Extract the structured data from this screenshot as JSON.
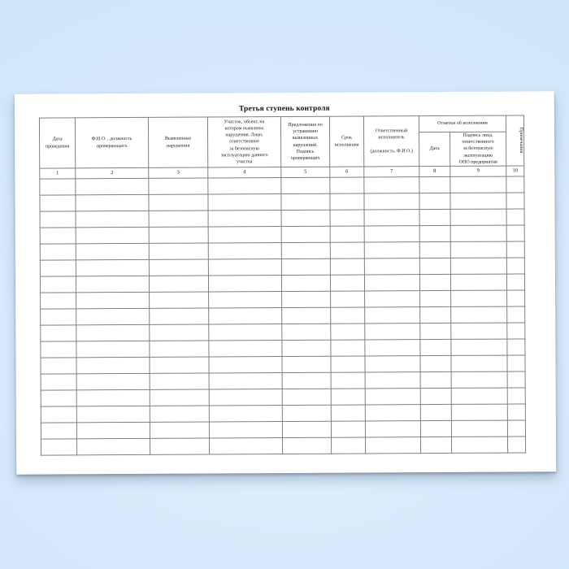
{
  "background": {
    "base_color": "#d7eafb"
  },
  "page": {
    "color": "#ffffff",
    "border_color": "#7f7f7f"
  },
  "doc": {
    "title": "Третья ступень контроля",
    "table": {
      "headers": {
        "col1": "Дата\nпроведения",
        "col2": "Ф.И.О. , должность\nпроверяющего",
        "col3": "Выявленные\nнарушения",
        "col4": "Участок, объект, на\nкотором выявлены\nнарушения. Лицо,\nответственное\nза безопасную\nэксплуатацию данного\nучастка",
        "col5": "Предложения по\nустранению\nвыявленных\nнарушений.\nПодпись\nпроверяющих",
        "col6": "Срок\nисполнения",
        "col7": "Ответственный\nисполнитель\n\n(должность, Ф.И.О.)",
        "col8_group": "Отметки об исполнении",
        "col8": "Дата",
        "col9": "Подпись лица,\nответственного\nза безопасную\nэксплуатацию\nОПО предприятия",
        "col10": "Примечания"
      },
      "column_numbers": [
        "1",
        "2",
        "3",
        "4",
        "5",
        "6",
        "7",
        "8",
        "9",
        "10"
      ],
      "column_count": 10,
      "empty_row_count": 17
    }
  }
}
